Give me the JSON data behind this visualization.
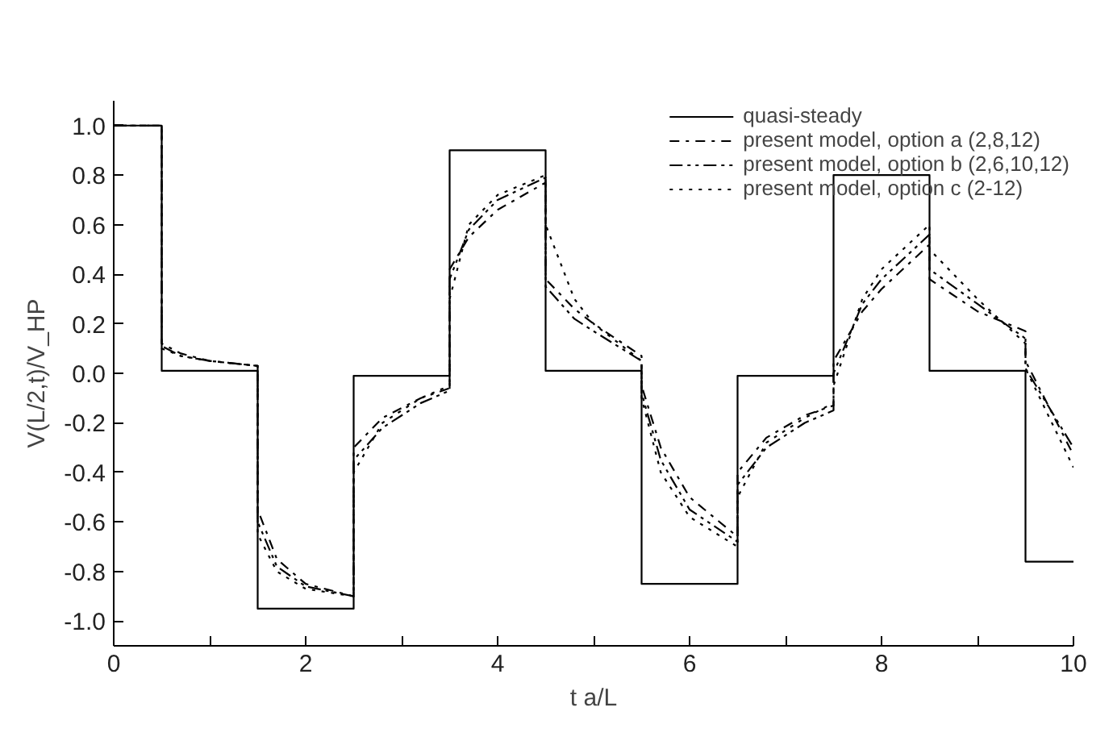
{
  "chart_data": {
    "type": "line",
    "xlabel": "t a/L",
    "ylabel": "V(L/2,t)/V_HP",
    "xlim": [
      0,
      10
    ],
    "ylim": [
      -1.1,
      1.1
    ],
    "xticks": [
      0,
      {
        "value": 1,
        "label": null
      },
      2,
      {
        "value": 3,
        "label": null
      },
      4,
      {
        "value": 5,
        "label": null
      },
      6,
      {
        "value": 7,
        "label": null
      },
      8,
      {
        "value": 9,
        "label": null
      },
      10
    ],
    "yticks": [
      {
        "value": -1,
        "label": "-1.0"
      },
      -0.8,
      -0.6,
      -0.4,
      -0.2,
      {
        "value": 0,
        "label": "0.0"
      },
      0.2,
      0.4,
      0.6,
      0.8,
      {
        "value": 1,
        "label": "1.0"
      }
    ],
    "grid": false,
    "legend": "top right",
    "marker": "none",
    "series": [
      {
        "name": "quasi-steady",
        "color": "#000000",
        "line_style": "solid",
        "x": [
          0,
          0.5,
          0.5,
          1.5,
          1.5,
          2.5,
          2.5,
          3.5,
          3.5,
          4.5,
          4.5,
          5.5,
          5.5,
          6.5,
          6.5,
          7.5,
          7.5,
          8.5,
          8.5,
          9.5,
          9.5,
          10
        ],
        "values": [
          1.0,
          1.0,
          0.01,
          0.01,
          -0.95,
          -0.95,
          -0.01,
          -0.01,
          0.9,
          0.9,
          0.01,
          0.01,
          -0.85,
          -0.85,
          -0.01,
          -0.01,
          0.8,
          0.8,
          0.01,
          0.01,
          -0.76,
          -0.76
        ]
      },
      {
        "name": "present model, option a (2,8,12)",
        "color": "#000000",
        "line_style": "dashdot",
        "x": [
          0,
          0.5,
          0.5,
          0.7,
          1.0,
          1.5,
          1.5,
          1.7,
          2.0,
          2.5,
          2.5,
          2.8,
          3.2,
          3.5,
          3.5,
          3.7,
          4.0,
          4.5,
          4.5,
          4.8,
          5.0,
          5.5,
          5.5,
          5.7,
          6.0,
          6.5,
          6.5,
          6.8,
          7.2,
          7.5,
          7.5,
          7.8,
          8.0,
          8.5,
          8.5,
          9.0,
          9.5,
          9.5,
          10
        ],
        "values": [
          1.0,
          1.0,
          0.12,
          0.08,
          0.05,
          0.03,
          -0.55,
          -0.75,
          -0.85,
          -0.9,
          -0.3,
          -0.18,
          -0.1,
          -0.06,
          0.42,
          0.55,
          0.66,
          0.77,
          0.38,
          0.26,
          0.2,
          0.07,
          -0.05,
          -0.3,
          -0.5,
          -0.66,
          -0.4,
          -0.26,
          -0.17,
          -0.13,
          0.05,
          0.25,
          0.34,
          0.52,
          0.38,
          0.25,
          0.17,
          0.05,
          -0.33
        ]
      },
      {
        "name": "present model, option b (2,6,10,12)",
        "color": "#000000",
        "line_style": "dashdotdot",
        "x": [
          0,
          0.5,
          0.5,
          0.7,
          1.0,
          1.5,
          1.5,
          1.7,
          2.0,
          2.5,
          2.5,
          2.8,
          3.2,
          3.5,
          3.5,
          3.7,
          4.0,
          4.5,
          4.5,
          4.8,
          5.0,
          5.5,
          5.5,
          5.7,
          6.0,
          6.5,
          6.5,
          6.8,
          7.2,
          7.5,
          7.5,
          7.8,
          8.0,
          8.5,
          8.5,
          9.0,
          9.5,
          9.5,
          10
        ],
        "values": [
          1.0,
          1.0,
          0.11,
          0.07,
          0.05,
          0.03,
          -0.6,
          -0.78,
          -0.86,
          -0.9,
          -0.35,
          -0.22,
          -0.12,
          -0.07,
          0.38,
          0.58,
          0.7,
          0.79,
          0.35,
          0.22,
          0.17,
          0.05,
          -0.08,
          -0.35,
          -0.55,
          -0.68,
          -0.45,
          -0.3,
          -0.2,
          -0.15,
          0.0,
          0.28,
          0.38,
          0.56,
          0.42,
          0.28,
          0.14,
          0.02,
          -0.3
        ]
      },
      {
        "name": "present model, option c (2-12)",
        "color": "#000000",
        "line_style": "dotted",
        "x": [
          0,
          0.5,
          0.5,
          0.7,
          1.0,
          1.5,
          1.5,
          1.7,
          2.0,
          2.5,
          2.5,
          2.8,
          3.2,
          3.5,
          3.5,
          3.7,
          4.0,
          4.5,
          4.5,
          4.8,
          5.0,
          5.5,
          5.5,
          5.7,
          6.0,
          6.5,
          6.5,
          6.8,
          7.2,
          7.5,
          7.5,
          7.8,
          8.0,
          8.5,
          8.5,
          9.0,
          9.5,
          9.5,
          10
        ],
        "values": [
          1.0,
          1.0,
          0.1,
          0.07,
          0.05,
          0.03,
          -0.65,
          -0.8,
          -0.87,
          -0.9,
          -0.4,
          -0.2,
          -0.1,
          -0.05,
          0.3,
          0.6,
          0.72,
          0.8,
          0.6,
          0.3,
          0.2,
          0.05,
          -0.1,
          -0.4,
          -0.58,
          -0.7,
          -0.5,
          -0.28,
          -0.18,
          -0.12,
          -0.05,
          0.3,
          0.42,
          0.6,
          0.5,
          0.3,
          0.12,
          0.02,
          -0.38
        ]
      }
    ]
  }
}
